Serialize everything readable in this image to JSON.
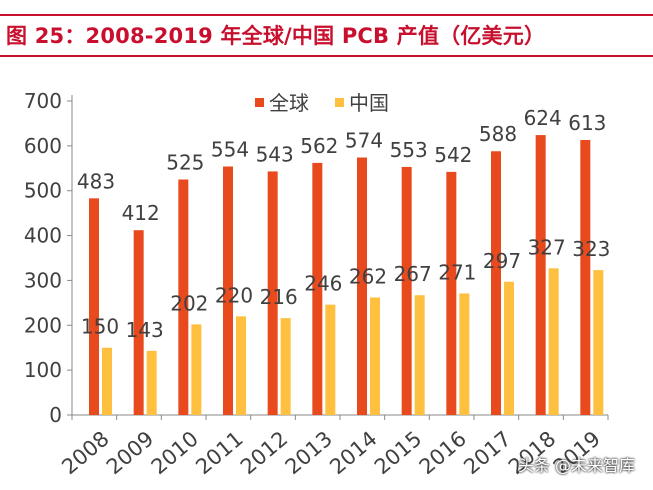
{
  "header": {
    "title": "图 25：2008-2019 年全球/中国 PCB 产值（亿美元）"
  },
  "watermark": {
    "text": "头条 @未来智库"
  },
  "chart_data": {
    "type": "bar",
    "title": "图 25：2008-2019 年全球/中国 PCB 产值（亿美元）",
    "categories": [
      "2008",
      "2009",
      "2010",
      "2011",
      "2012",
      "2013",
      "2014",
      "2015",
      "2016",
      "2017",
      "2018",
      "2019"
    ],
    "series": [
      {
        "name": "全球",
        "color": "#E8491D",
        "values": [
          483,
          412,
          525,
          554,
          543,
          562,
          574,
          553,
          542,
          588,
          624,
          613
        ]
      },
      {
        "name": "中国",
        "color": "#FFBF3F",
        "values": [
          150,
          143,
          202,
          220,
          216,
          246,
          262,
          267,
          271,
          297,
          327,
          323
        ]
      }
    ],
    "yticks": [
      0,
      100,
      200,
      300,
      400,
      500,
      600,
      700
    ],
    "ylim": [
      0,
      700
    ],
    "xlabel": "",
    "ylabel": "",
    "grid": false,
    "legend_position": "top-center"
  }
}
